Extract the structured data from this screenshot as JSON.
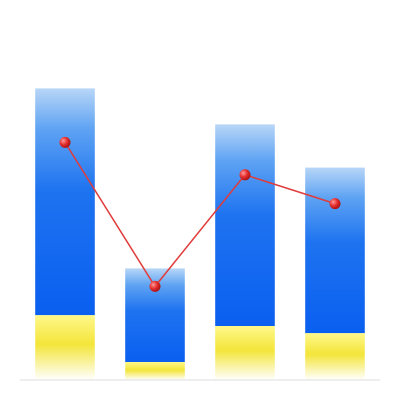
{
  "chart_data": {
    "type": "bar",
    "categories": [
      "",
      "",
      "",
      ""
    ],
    "title": "",
    "xlabel": "",
    "ylabel": "",
    "ylim": [
      0,
      100
    ],
    "grid": false,
    "legend": "none",
    "series": [
      {
        "type": "bar-stacked",
        "values": [
          18,
          5,
          15,
          13
        ]
      },
      {
        "type": "bar-stacked",
        "values": [
          63,
          26,
          56,
          46
        ]
      },
      {
        "type": "line",
        "values": [
          66,
          26,
          57,
          49
        ]
      }
    ],
    "colors": {
      "bar_top": "#9fc7f3",
      "bar_main": "#1c6ef0",
      "bar_base_top": "#fff76a",
      "bar_base_bottom": "#d4c213",
      "line": "#e03b3b",
      "marker": "#e53030",
      "axis": "#cccccc"
    }
  }
}
